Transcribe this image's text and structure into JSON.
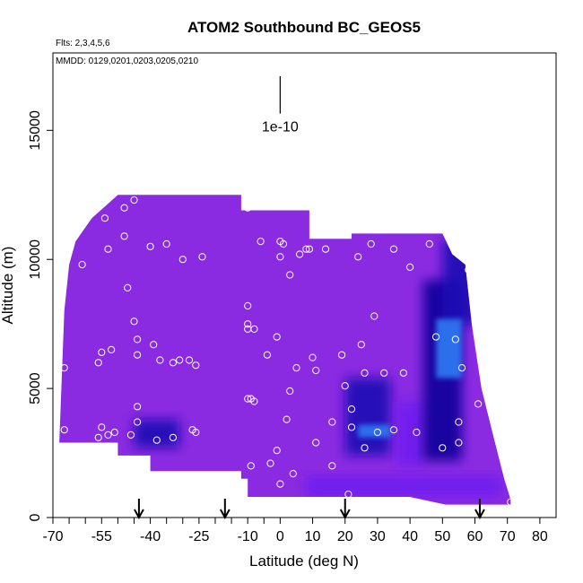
{
  "chart_data": {
    "type": "heatmap",
    "title": "ATOM2 Southbound BC_GEOS5",
    "subtitle_flights": "Flts: 2,3,4,5,6",
    "subtitle_dates": "MMDD: 0129,0201,0203,0205,0210",
    "xlabel": "Latitude (deg N)",
    "ylabel": "Altitude (m)",
    "xlim": [
      -70,
      85
    ],
    "ylim": [
      0,
      18000
    ],
    "x_tick_labels": [
      "-70",
      "-55",
      "-40",
      "-25",
      "-10",
      "0",
      "10",
      "20",
      "30",
      "40",
      "50",
      "60",
      "70",
      "80"
    ],
    "x_tick_values": [
      -70,
      -55,
      -40,
      -25,
      -10,
      0,
      10,
      20,
      30,
      40,
      50,
      60,
      70,
      80
    ],
    "x_minor_ticks": [
      -65,
      -60,
      -50,
      -45,
      -35,
      -30,
      -20,
      -15,
      -5
    ],
    "y_tick_labels": [
      "0",
      "5000",
      "10000",
      "15000"
    ],
    "y_tick_values": [
      0,
      5000,
      10000,
      15000
    ],
    "scale_bar": {
      "label": "1e-10",
      "x": 0,
      "y_bottom": 15650,
      "y_top": 17100
    },
    "arrows_x": [
      -43.5,
      -17,
      20,
      61.5
    ],
    "colors": {
      "base": "#8a2be2",
      "medium": "#6f1ff0",
      "dark": "#1e0ab4",
      "darker": "#10009a",
      "bright": "#2d74f0",
      "points": "#ffffff"
    },
    "coverage_top": [
      {
        "lat": -68,
        "alt": 3000
      },
      {
        "lat": -66.5,
        "alt": 8000
      },
      {
        "lat": -65,
        "alt": 9800
      },
      {
        "lat": -63,
        "alt": 10700
      },
      {
        "lat": -58,
        "alt": 11600
      },
      {
        "lat": -50,
        "alt": 12500
      },
      {
        "lat": -12,
        "alt": 12500
      },
      {
        "lat": -12,
        "alt": 11900
      },
      {
        "lat": 9,
        "alt": 11900
      },
      {
        "lat": 9,
        "alt": 10800
      },
      {
        "lat": 22,
        "alt": 10800
      },
      {
        "lat": 22,
        "alt": 11000
      },
      {
        "lat": 50,
        "alt": 11000
      },
      {
        "lat": 53,
        "alt": 10200
      },
      {
        "lat": 57,
        "alt": 9800
      },
      {
        "lat": 59,
        "alt": 7500
      },
      {
        "lat": 62,
        "alt": 5000
      },
      {
        "lat": 66,
        "alt": 3000
      },
      {
        "lat": 69,
        "alt": 1500
      },
      {
        "lat": 71,
        "alt": 700
      }
    ],
    "coverage_bottom": [
      {
        "lat": 71,
        "alt": 500
      },
      {
        "lat": 51,
        "alt": 500
      },
      {
        "lat": 40,
        "alt": 800
      },
      {
        "lat": 25,
        "alt": 800
      },
      {
        "lat": -10,
        "alt": 800
      },
      {
        "lat": -10,
        "alt": 1500
      },
      {
        "lat": -12,
        "alt": 1500
      },
      {
        "lat": -12,
        "alt": 1800
      },
      {
        "lat": -40,
        "alt": 1800
      },
      {
        "lat": -40,
        "alt": 2400
      },
      {
        "lat": -50,
        "alt": 2400
      },
      {
        "lat": -50,
        "alt": 2900
      },
      {
        "lat": -68,
        "alt": 2900
      }
    ],
    "dark_regions": [
      {
        "lat": 20,
        "alt": 2400,
        "w": 14,
        "h": 3000,
        "level": "dark"
      },
      {
        "lat": 36,
        "alt": 2000,
        "w": 8,
        "h": 2500,
        "level": "medium"
      },
      {
        "lat": 44,
        "alt": 2200,
        "w": 12,
        "h": 7000,
        "level": "darker"
      },
      {
        "lat": 50,
        "alt": 7500,
        "w": 12,
        "h": 3300,
        "level": "dark"
      },
      {
        "lat": -45,
        "alt": 2700,
        "w": 14,
        "h": 1100,
        "level": "dark"
      },
      {
        "lat": 8,
        "alt": 800,
        "w": 60,
        "h": 800,
        "level": "medium"
      }
    ],
    "bright_regions": [
      {
        "lat": 24,
        "alt": 3100,
        "w": 10,
        "h": 500
      },
      {
        "lat": 48,
        "alt": 5400,
        "w": 8,
        "h": 2300
      }
    ],
    "observations": [
      {
        "lat": -66.5,
        "alt": 5800
      },
      {
        "lat": -66.5,
        "alt": 3400
      },
      {
        "lat": -61,
        "alt": 9800
      },
      {
        "lat": -56,
        "alt": 6000
      },
      {
        "lat": -56,
        "alt": 3100
      },
      {
        "lat": -55,
        "alt": 6400
      },
      {
        "lat": -55,
        "alt": 3500
      },
      {
        "lat": -54,
        "alt": 11600
      },
      {
        "lat": -53,
        "alt": 10400
      },
      {
        "lat": -53,
        "alt": 3200
      },
      {
        "lat": -52,
        "alt": 6500
      },
      {
        "lat": -51,
        "alt": 3300
      },
      {
        "lat": -48,
        "alt": 12000
      },
      {
        "lat": -48,
        "alt": 10900
      },
      {
        "lat": -47,
        "alt": 8900
      },
      {
        "lat": -46,
        "alt": 3200
      },
      {
        "lat": -45,
        "alt": 12300
      },
      {
        "lat": -45,
        "alt": 7600
      },
      {
        "lat": -44,
        "alt": 6900
      },
      {
        "lat": -44,
        "alt": 6300
      },
      {
        "lat": -44,
        "alt": 3700
      },
      {
        "lat": -44,
        "alt": 4300
      },
      {
        "lat": -40,
        "alt": 10500
      },
      {
        "lat": -39,
        "alt": 6700
      },
      {
        "lat": -38,
        "alt": 3000
      },
      {
        "lat": -37,
        "alt": 6100
      },
      {
        "lat": -35,
        "alt": 10600
      },
      {
        "lat": -33,
        "alt": 6000
      },
      {
        "lat": -33,
        "alt": 3100
      },
      {
        "lat": -31,
        "alt": 6100
      },
      {
        "lat": -30,
        "alt": 10000
      },
      {
        "lat": -28,
        "alt": 6100
      },
      {
        "lat": -27,
        "alt": 3400
      },
      {
        "lat": -26,
        "alt": 5900
      },
      {
        "lat": -26,
        "alt": 3300
      },
      {
        "lat": -24,
        "alt": 10100
      },
      {
        "lat": -10,
        "alt": 12000
      },
      {
        "lat": -10,
        "alt": 8200
      },
      {
        "lat": -10,
        "alt": 7500
      },
      {
        "lat": -10,
        "alt": 7300
      },
      {
        "lat": -10,
        "alt": 4600
      },
      {
        "lat": -9,
        "alt": 4600
      },
      {
        "lat": -9,
        "alt": 2000
      },
      {
        "lat": -8,
        "alt": 7300
      },
      {
        "lat": -8,
        "alt": 4500
      },
      {
        "lat": -6,
        "alt": 10700
      },
      {
        "lat": -4,
        "alt": 6300
      },
      {
        "lat": -3,
        "alt": 2100
      },
      {
        "lat": -1,
        "alt": 7000
      },
      {
        "lat": -1,
        "alt": 2600
      },
      {
        "lat": 0,
        "alt": 10100
      },
      {
        "lat": 0,
        "alt": 10700
      },
      {
        "lat": 0,
        "alt": 1300
      },
      {
        "lat": 1,
        "alt": 10600
      },
      {
        "lat": 2,
        "alt": 3800
      },
      {
        "lat": 3,
        "alt": 9400
      },
      {
        "lat": 3,
        "alt": 4900
      },
      {
        "lat": 4,
        "alt": 1700
      },
      {
        "lat": 5,
        "alt": 5800
      },
      {
        "lat": 6,
        "alt": 10200
      },
      {
        "lat": 8,
        "alt": 10400
      },
      {
        "lat": 9,
        "alt": 10400
      },
      {
        "lat": 10,
        "alt": 6200
      },
      {
        "lat": 11,
        "alt": 5700
      },
      {
        "lat": 11,
        "alt": 2900
      },
      {
        "lat": 14,
        "alt": 10400
      },
      {
        "lat": 16,
        "alt": 3700
      },
      {
        "lat": 16,
        "alt": 2000
      },
      {
        "lat": 19,
        "alt": 6300
      },
      {
        "lat": 20,
        "alt": 5100
      },
      {
        "lat": 21,
        "alt": 900
      },
      {
        "lat": 22,
        "alt": 4200
      },
      {
        "lat": 22,
        "alt": 3500
      },
      {
        "lat": 24,
        "alt": 10100
      },
      {
        "lat": 25,
        "alt": 6700
      },
      {
        "lat": 26,
        "alt": 5600
      },
      {
        "lat": 26,
        "alt": 2700
      },
      {
        "lat": 28,
        "alt": 10600
      },
      {
        "lat": 29,
        "alt": 7800
      },
      {
        "lat": 30,
        "alt": 3300
      },
      {
        "lat": 32,
        "alt": 5600
      },
      {
        "lat": 35,
        "alt": 10400
      },
      {
        "lat": 35,
        "alt": 3400
      },
      {
        "lat": 38,
        "alt": 5600
      },
      {
        "lat": 40,
        "alt": 9700
      },
      {
        "lat": 42,
        "alt": 3300
      },
      {
        "lat": 46,
        "alt": 10600
      },
      {
        "lat": 48,
        "alt": 7000
      },
      {
        "lat": 50,
        "alt": 2700
      },
      {
        "lat": 54,
        "alt": 6900
      },
      {
        "lat": 55,
        "alt": 3700
      },
      {
        "lat": 55,
        "alt": 2900
      },
      {
        "lat": 56,
        "alt": 5800
      },
      {
        "lat": 58,
        "alt": 9600
      },
      {
        "lat": 61,
        "alt": 4400
      },
      {
        "lat": 71,
        "alt": 600
      }
    ]
  }
}
